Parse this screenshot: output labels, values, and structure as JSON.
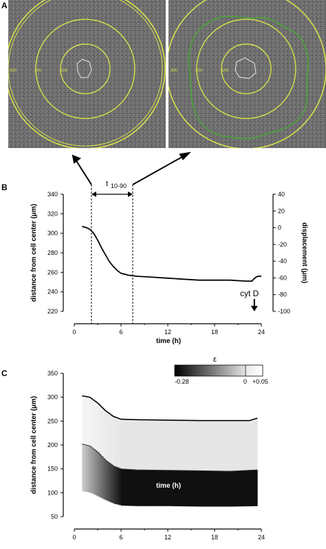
{
  "panels": {
    "a": {
      "label": "A",
      "ring_labels_left": [
        "300",
        "200",
        "100"
      ],
      "ring_labels_right": [
        "300",
        "200",
        "100"
      ],
      "ring_color": "#d8e24a",
      "contour_color": "#49a537"
    },
    "b": {
      "label": "B",
      "annotation": "t",
      "annotation_sub": "10-90",
      "arrow_label": "cyt D"
    },
    "c": {
      "label": "C",
      "colorbar": {
        "symbol": "ε",
        "min_label": "-0.28",
        "zero_label": "0",
        "max_label": "+0.05"
      }
    }
  },
  "chart_data": [
    {
      "id": "panel-b",
      "type": "line",
      "xlabel": "time (h)",
      "ylabel": "distance from cell center (μm)",
      "y2label": "displacement (μm)",
      "xlim": [
        0,
        24
      ],
      "ylim": [
        220,
        340
      ],
      "y2lim": [
        -100,
        40
      ],
      "xticks": [
        "0",
        "6",
        "12",
        "18",
        "24"
      ],
      "yticks": [
        "220",
        "240",
        "260",
        "280",
        "300",
        "320",
        "340"
      ],
      "y2ticks": [
        "-100",
        "-80",
        "-60",
        "-40",
        "-20",
        "0",
        "20",
        "40"
      ],
      "series": [
        {
          "x": [
            1,
            1.5,
            2,
            2.5,
            3,
            3.5,
            4,
            4.5,
            5,
            5.5,
            6,
            7,
            8,
            10,
            12,
            14,
            16,
            18,
            20,
            22,
            22.8,
            23,
            23.3,
            23.6,
            24
          ],
          "y": [
            307,
            306,
            304,
            300,
            293,
            285,
            278,
            271,
            266,
            262,
            259,
            257,
            256,
            255,
            254,
            253,
            252,
            252,
            252,
            251,
            251,
            253,
            255,
            256,
            256
          ]
        }
      ],
      "vlines": [
        2.2,
        7.5
      ]
    },
    {
      "id": "panel-c",
      "type": "heatmap",
      "xlabel": "time (h)",
      "ylabel": "distance from cell center (μm)",
      "xlim": [
        0,
        24
      ],
      "ylim": [
        50,
        350
      ],
      "xticks": [
        "0",
        "6",
        "12",
        "18",
        "24"
      ],
      "yticks": [
        "50",
        "100",
        "150",
        "200",
        "250",
        "300",
        "350"
      ],
      "strain_range": [
        -0.28,
        0.05
      ],
      "outer_boundary": {
        "x": [
          1,
          2,
          3,
          4,
          5,
          6,
          8,
          12,
          16,
          20,
          22.5,
          23,
          23.5
        ],
        "y": [
          303,
          300,
          288,
          272,
          260,
          254,
          253,
          252,
          251,
          251,
          251,
          254,
          256
        ]
      },
      "inner_boundary": {
        "x": [
          1,
          2,
          3,
          4,
          5,
          6,
          8,
          12,
          16,
          20,
          23.5
        ],
        "y": [
          202,
          198,
          185,
          168,
          156,
          150,
          148,
          147,
          146,
          145,
          148
        ]
      },
      "lower_boundary": {
        "x": [
          1,
          2,
          3,
          4,
          5,
          6,
          8,
          12,
          16,
          20,
          23.5
        ],
        "y": [
          103,
          100,
          92,
          84,
          77,
          73,
          72,
          72,
          71,
          71,
          72
        ]
      }
    }
  ]
}
